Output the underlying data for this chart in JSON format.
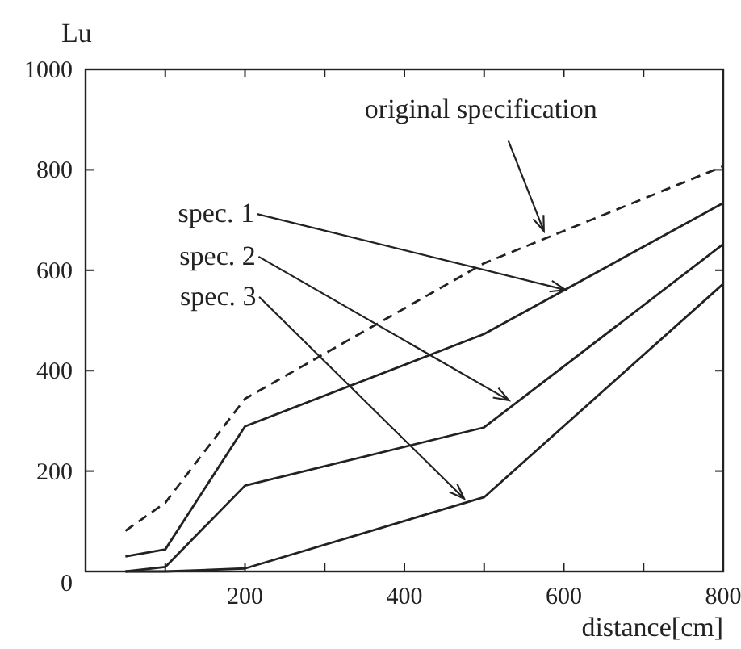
{
  "chart_data": {
    "type": "line",
    "xlabel": "distance[cm]",
    "ylabel": "Lu",
    "xlim": [
      0,
      800
    ],
    "ylim": [
      0,
      1000
    ],
    "xticks": [
      {
        "value": 0,
        "label": null
      },
      {
        "value": 100,
        "label": null
      },
      200,
      {
        "value": 300,
        "label": null
      },
      400,
      {
        "value": 500,
        "label": null
      },
      600,
      {
        "value": 700,
        "label": null
      },
      800
    ],
    "yticks": [
      0,
      200,
      400,
      600,
      800,
      1000
    ],
    "x": [
      50,
      100,
      200,
      500,
      800
    ],
    "series": [
      {
        "color": "#222222",
        "line_style": "dashed",
        "values": [
          81,
          137,
          344,
          614,
          807
        ]
      },
      {
        "color": "#222222",
        "line_style": "solid",
        "values": [
          30,
          44,
          289,
          473,
          734
        ]
      },
      {
        "color": "#222222",
        "line_style": "solid",
        "values": [
          0,
          9,
          171,
          287,
          652
        ]
      },
      {
        "color": "#222222",
        "line_style": "solid",
        "values": [
          0,
          0,
          6,
          148,
          573
        ]
      }
    ],
    "annotations": [
      {
        "text": "original specification",
        "x": 575,
        "y": 678
      },
      {
        "text": "spec. 1",
        "x": 602,
        "y": 561
      },
      {
        "text": "spec. 2",
        "x": 531,
        "y": 341
      },
      {
        "text": "spec. 3",
        "x": 475,
        "y": 145
      }
    ],
    "grid": false,
    "marker": "none"
  }
}
